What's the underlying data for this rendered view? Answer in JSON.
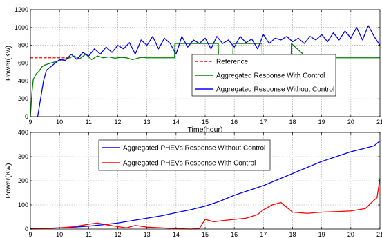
{
  "chart_data": [
    {
      "type": "line",
      "xlabel": "Time(hour)",
      "ylabel": "Power(Kw)",
      "xlim": [
        9,
        21
      ],
      "ylim": [
        0,
        1200
      ],
      "xticks": [
        9,
        10,
        11,
        12,
        13,
        14,
        15,
        16,
        17,
        18,
        19,
        20,
        21
      ],
      "yticks": [
        0,
        200,
        400,
        600,
        800,
        1000,
        1200
      ],
      "grid": true,
      "legend": "center-right",
      "series": [
        {
          "name": "Reference",
          "color": "#ff0000",
          "style": "dashed",
          "x": [
            9,
            10.4
          ],
          "y": [
            660,
            660
          ]
        },
        {
          "name": "Aggregated Response With Control",
          "color": "#008000",
          "style": "solid",
          "x": [
            9.0,
            9.05,
            9.1,
            9.2,
            9.3,
            9.4,
            9.5,
            9.7,
            9.9,
            10.1,
            10.3,
            10.5,
            10.7,
            10.9,
            11.1,
            11.3,
            11.5,
            11.7,
            11.9,
            12.1,
            12.3,
            12.5,
            12.8,
            13.0,
            13.5,
            13.95,
            13.96,
            14.5,
            15.0,
            15.45,
            15.46,
            15.95,
            15.96,
            16.5,
            16.95,
            16.96,
            17.5,
            17.95,
            17.96,
            18.5,
            19.0,
            19.5,
            20.0,
            20.5,
            21.0
          ],
          "y": [
            0,
            260,
            420,
            480,
            510,
            560,
            580,
            600,
            620,
            640,
            655,
            680,
            650,
            700,
            640,
            680,
            660,
            670,
            655,
            665,
            660,
            640,
            665,
            660,
            660,
            660,
            820,
            820,
            820,
            820,
            660,
            660,
            820,
            820,
            820,
            660,
            660,
            660,
            820,
            660,
            660,
            660,
            660,
            660,
            660
          ]
        },
        {
          "name": "Aggregated Response Without Control",
          "color": "#0000ff",
          "style": "solid",
          "x": [
            9.25,
            9.35,
            9.45,
            9.55,
            9.7,
            9.85,
            10.0,
            10.2,
            10.4,
            10.6,
            10.8,
            11.0,
            11.2,
            11.4,
            11.6,
            11.8,
            12.0,
            12.2,
            12.4,
            12.6,
            12.8,
            13.0,
            13.2,
            13.4,
            13.6,
            13.8,
            14.0,
            14.2,
            14.4,
            14.6,
            14.8,
            15.0,
            15.2,
            15.4,
            15.6,
            15.8,
            16.0,
            16.2,
            16.4,
            16.6,
            16.8,
            17.0,
            17.2,
            17.4,
            17.6,
            17.8,
            18.0,
            18.2,
            18.4,
            18.6,
            18.8,
            19.0,
            19.2,
            19.4,
            19.6,
            19.8,
            20.0,
            20.2,
            20.4,
            20.6,
            20.8,
            21.0
          ],
          "y": [
            0,
            200,
            400,
            520,
            560,
            600,
            640,
            630,
            700,
            640,
            720,
            680,
            760,
            700,
            780,
            720,
            800,
            760,
            830,
            700,
            860,
            800,
            900,
            760,
            880,
            820,
            700,
            900,
            780,
            860,
            820,
            880,
            760,
            900,
            820,
            860,
            780,
            900,
            830,
            870,
            760,
            920,
            820,
            880,
            860,
            900,
            840,
            880,
            820,
            900,
            860,
            920,
            840,
            940,
            860,
            960,
            880,
            1000,
            860,
            1020,
            900,
            800
          ]
        }
      ]
    },
    {
      "type": "line",
      "xlabel": "Time(hour)",
      "ylabel": "Power(Kw)",
      "xlim": [
        9,
        21
      ],
      "ylim": [
        0,
        400
      ],
      "xticks": [
        9,
        10,
        11,
        12,
        13,
        14,
        15,
        16,
        17,
        18,
        19,
        20,
        21
      ],
      "yticks": [
        0,
        100,
        200,
        300,
        400
      ],
      "grid": true,
      "legend": "top-left",
      "series": [
        {
          "name": "Aggregated PHEVs Response Without Control",
          "color": "#0000ff",
          "style": "solid",
          "x": [
            9.0,
            9.5,
            10.0,
            10.5,
            11.0,
            11.5,
            12.0,
            12.5,
            13.0,
            13.5,
            14.0,
            14.5,
            15.0,
            15.5,
            16.0,
            16.5,
            17.0,
            17.5,
            18.0,
            18.5,
            19.0,
            19.5,
            20.0,
            20.5,
            20.8,
            21.0
          ],
          "y": [
            2,
            3,
            5,
            8,
            12,
            18,
            25,
            35,
            45,
            55,
            68,
            80,
            95,
            115,
            140,
            160,
            180,
            205,
            230,
            255,
            280,
            300,
            320,
            335,
            345,
            365
          ]
        },
        {
          "name": "Aggregated PHEVs Response With Control",
          "color": "#ff0000",
          "style": "solid",
          "x": [
            9.0,
            9.5,
            10.0,
            10.5,
            11.0,
            11.3,
            11.6,
            12.0,
            12.3,
            12.6,
            13.0,
            13.5,
            14.0,
            14.5,
            14.8,
            15.0,
            15.3,
            15.6,
            16.0,
            16.4,
            16.8,
            17.0,
            17.3,
            17.6,
            18.0,
            18.5,
            19.0,
            19.5,
            20.0,
            20.5,
            20.8,
            20.9,
            21.0
          ],
          "y": [
            0,
            2,
            5,
            10,
            20,
            25,
            18,
            10,
            5,
            15,
            8,
            5,
            2,
            0,
            2,
            40,
            30,
            35,
            40,
            45,
            60,
            80,
            100,
            110,
            70,
            65,
            70,
            72,
            75,
            85,
            120,
            130,
            210
          ]
        }
      ]
    }
  ]
}
